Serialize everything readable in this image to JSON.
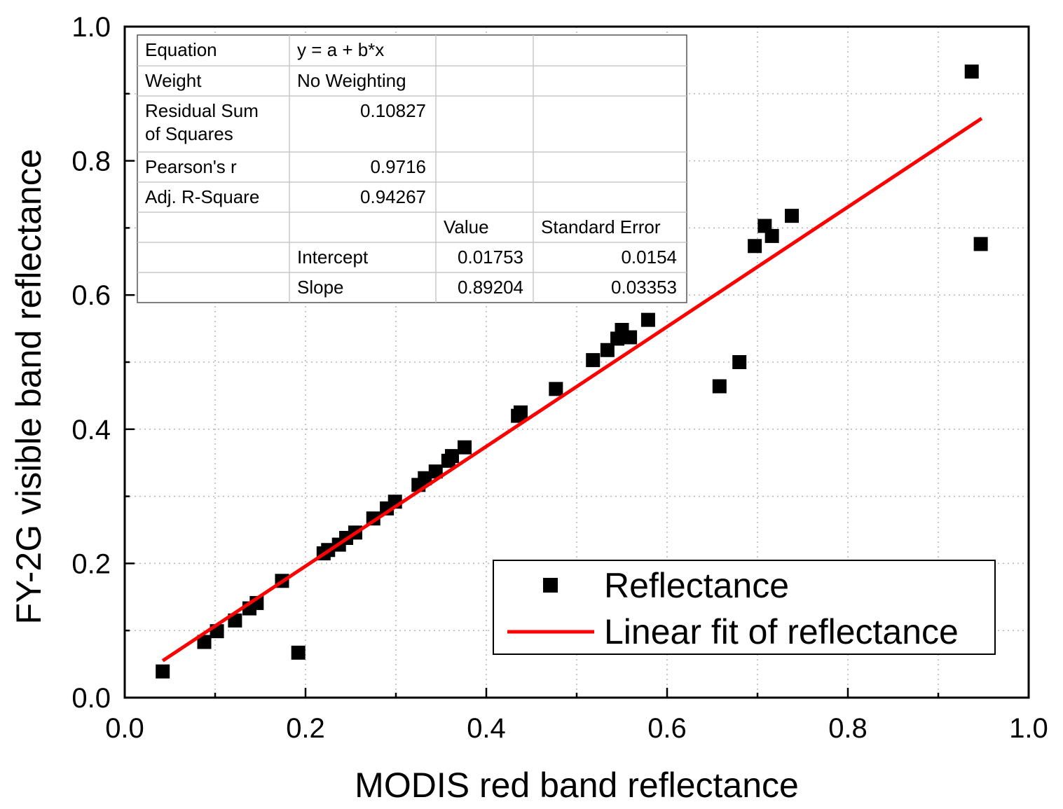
{
  "chart_data": {
    "type": "scatter",
    "xlabel": "MODIS red band reflectance",
    "ylabel": "FY-2G visible band reflectance",
    "xlim": [
      0.0,
      1.0
    ],
    "ylim": [
      0.0,
      1.0
    ],
    "xticks": [
      "0.0",
      "0.2",
      "0.4",
      "0.6",
      "0.8",
      "1.0"
    ],
    "yticks": [
      "0.0",
      "0.2",
      "0.4",
      "0.6",
      "0.8",
      "1.0"
    ],
    "grid": true,
    "legend_position": "bottom-right",
    "series": [
      {
        "name": "Reflectance",
        "kind": "scatter",
        "color": "#000000",
        "points": [
          [
            0.042,
            0.039
          ],
          [
            0.088,
            0.083
          ],
          [
            0.102,
            0.099
          ],
          [
            0.122,
            0.115
          ],
          [
            0.138,
            0.133
          ],
          [
            0.146,
            0.141
          ],
          [
            0.174,
            0.174
          ],
          [
            0.192,
            0.067
          ],
          [
            0.22,
            0.215
          ],
          [
            0.225,
            0.22
          ],
          [
            0.237,
            0.228
          ],
          [
            0.245,
            0.238
          ],
          [
            0.255,
            0.246
          ],
          [
            0.275,
            0.267
          ],
          [
            0.29,
            0.282
          ],
          [
            0.299,
            0.292
          ],
          [
            0.325,
            0.317
          ],
          [
            0.332,
            0.327
          ],
          [
            0.344,
            0.337
          ],
          [
            0.358,
            0.353
          ],
          [
            0.362,
            0.36
          ],
          [
            0.376,
            0.373
          ],
          [
            0.435,
            0.42
          ],
          [
            0.438,
            0.425
          ],
          [
            0.477,
            0.46
          ],
          [
            0.518,
            0.503
          ],
          [
            0.534,
            0.518
          ],
          [
            0.545,
            0.535
          ],
          [
            0.55,
            0.548
          ],
          [
            0.559,
            0.537
          ],
          [
            0.579,
            0.563
          ],
          [
            0.658,
            0.464
          ],
          [
            0.68,
            0.5
          ],
          [
            0.697,
            0.673
          ],
          [
            0.708,
            0.703
          ],
          [
            0.716,
            0.688
          ],
          [
            0.738,
            0.718
          ],
          [
            0.937,
            0.933
          ],
          [
            0.947,
            0.676
          ]
        ]
      },
      {
        "name": "Linear fit of reflectance",
        "kind": "line",
        "color": "#ff0000",
        "points": [
          [
            0.042,
            0.05499
          ],
          [
            0.948,
            0.86318
          ]
        ]
      }
    ],
    "stats_table": {
      "rows": [
        [
          "Equation",
          "y = a + b*x",
          "",
          ""
        ],
        [
          "Weight",
          "No Weighting",
          "",
          ""
        ],
        [
          "Residual Sum\nof Squares",
          "0.10827",
          "",
          ""
        ],
        [
          "Pearson's r",
          "0.9716",
          "",
          ""
        ],
        [
          "Adj. R-Square",
          "0.94267",
          "",
          ""
        ],
        [
          "",
          "",
          "Value",
          "Standard Error"
        ],
        [
          "",
          "Intercept",
          "0.01753",
          "0.0154"
        ],
        [
          "",
          "Slope",
          "0.89204",
          "0.03353"
        ]
      ]
    }
  }
}
